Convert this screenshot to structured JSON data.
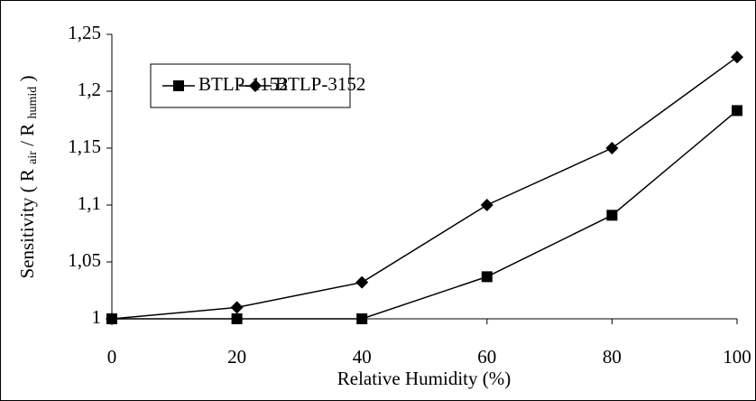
{
  "chart_data": {
    "type": "line",
    "xlabel": "Relative Humidity (%)",
    "ylabel": [
      "Sensitivity ( R",
      "air",
      "/ R",
      "humid",
      ")"
    ],
    "x": [
      0,
      20,
      40,
      60,
      80,
      100
    ],
    "series": [
      {
        "name": "BTLP-1152",
        "color": "#000000",
        "marker": "square",
        "values": [
          1.0,
          1.0,
          1.0,
          1.037,
          1.091,
          1.183
        ]
      },
      {
        "name": "BTLP-3152",
        "color": "#000000",
        "marker": "diamond",
        "values": [
          1.0,
          1.01,
          1.032,
          1.1,
          1.15,
          1.23
        ]
      }
    ],
    "xlim": [
      0,
      100
    ],
    "xticks": [
      0,
      20,
      40,
      60,
      80,
      100
    ],
    "ylim": [
      1,
      1.25
    ],
    "yticks": [
      1,
      {
        "value": 1.05,
        "label": "1,05"
      },
      {
        "value": 1.1,
        "label": "1,1"
      },
      {
        "value": 1.15,
        "label": "1,15"
      },
      {
        "value": 1.2,
        "label": "1,2"
      },
      {
        "value": 1.25,
        "label": "1,25"
      }
    ],
    "grid": false,
    "legend": "top-left"
  }
}
